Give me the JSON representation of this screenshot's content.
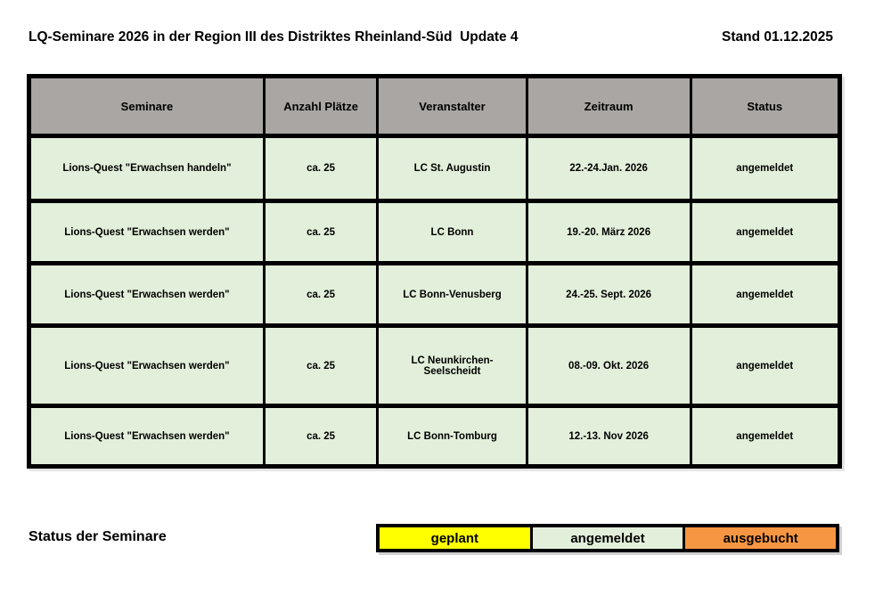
{
  "page": {
    "title": "LQ-Seminare 2026 in der Region III des Distriktes Rheinland-Süd  Update 4",
    "stand": "Stand 01.12.2025"
  },
  "table": {
    "columns": [
      "Seminare",
      "Anzahl Plätze",
      "Veranstalter",
      "Zeitraum",
      "Status"
    ],
    "rows": [
      {
        "seminar": "Lions-Quest \"Erwachsen handeln\"",
        "plaetze": "ca. 25",
        "veranstalter": "LC St. Augustin",
        "zeitraum": "22.-24.Jan. 2026",
        "status": "angemeldet"
      },
      {
        "seminar": "Lions-Quest \"Erwachsen werden\"",
        "plaetze": "ca. 25",
        "veranstalter": "LC Bonn",
        "zeitraum": "19.-20. März 2026",
        "status": "angemeldet"
      },
      {
        "seminar": "Lions-Quest \"Erwachsen werden\"",
        "plaetze": "ca. 25",
        "veranstalter": "LC Bonn-Venusberg",
        "zeitraum": "24.-25. Sept. 2026",
        "status": "angemeldet"
      },
      {
        "seminar": "Lions-Quest \"Erwachsen werden\"",
        "plaetze": "ca. 25",
        "veranstalter": "LC Neunkirchen-Seelscheidt",
        "zeitraum": "08.-09. Okt. 2026",
        "status": "angemeldet"
      },
      {
        "seminar": "Lions-Quest \"Erwachsen werden\"",
        "plaetze": "ca. 25",
        "veranstalter": "LC Bonn-Tomburg",
        "zeitraum": "12.-13. Nov 2026",
        "status": "angemeldet"
      }
    ]
  },
  "legend": {
    "label": "Status der Seminare",
    "items": [
      {
        "label": "geplant",
        "color": "#ffff00"
      },
      {
        "label": "angemeldet",
        "color": "#e2efda"
      },
      {
        "label": "ausgebucht",
        "color": "#f79642"
      }
    ]
  },
  "colors": {
    "header_bg": "#a9a6a3",
    "row_bg": "#e2efda",
    "border": "#000000"
  }
}
